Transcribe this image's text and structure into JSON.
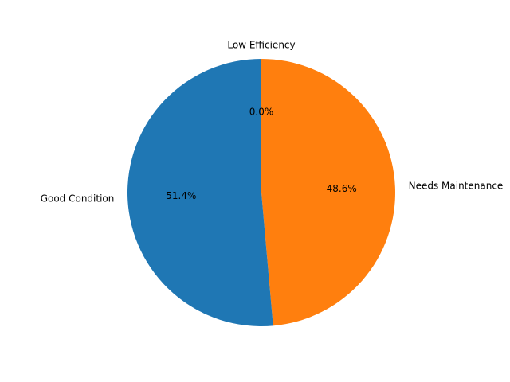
{
  "chart_data": {
    "type": "pie",
    "title": "",
    "slices": [
      {
        "label": "Low Efficiency",
        "value": 0.0,
        "pct_label": "0.0%",
        "color": "#2ca02c"
      },
      {
        "label": "Needs Maintenance",
        "value": 48.6,
        "pct_label": "48.6%",
        "color": "#ff7f0e"
      },
      {
        "label": "Good Condition",
        "value": 51.4,
        "pct_label": "51.4%",
        "color": "#1f77b4"
      }
    ],
    "start_angle_deg": 90,
    "direction": "clockwise",
    "legend": "none"
  }
}
